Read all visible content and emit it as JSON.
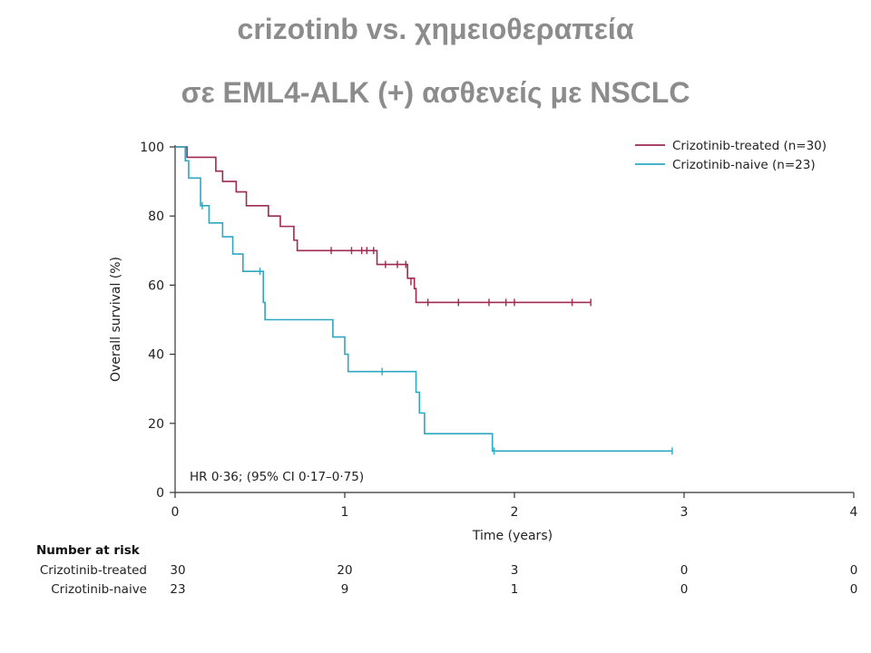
{
  "title": {
    "line1": "crizotinb vs. χημειοθεραπεία",
    "line2": "σε EML4-ALK (+) ασθενείς με NSCLC"
  },
  "chart_data": {
    "type": "line",
    "subtype": "kaplan-meier step curve",
    "xlabel": "Time (years)",
    "ylabel": "Overall survival (%)",
    "xlim": [
      0,
      4
    ],
    "ylim": [
      0,
      100
    ],
    "x_ticks": [
      0,
      1,
      2,
      3,
      4
    ],
    "y_ticks": [
      0,
      20,
      40,
      60,
      80,
      100
    ],
    "grid": false,
    "legend_position": "top-right",
    "annotation": "HR 0·36; (95% CI 0·17–0·75)",
    "colors": {
      "treated": "#9e2a4f",
      "naive": "#2ea7c2"
    },
    "series": [
      {
        "name": "Crizotinib-treated (n=30)",
        "color": "#9e2a4f",
        "steps": [
          [
            0,
            100
          ],
          [
            0.07,
            97
          ],
          [
            0.24,
            93
          ],
          [
            0.28,
            90
          ],
          [
            0.36,
            87
          ],
          [
            0.42,
            83
          ],
          [
            0.55,
            80
          ],
          [
            0.62,
            77
          ],
          [
            0.7,
            73
          ],
          [
            0.72,
            70
          ],
          [
            1.19,
            66
          ],
          [
            1.37,
            62
          ],
          [
            1.41,
            59
          ],
          [
            1.42,
            55
          ],
          [
            2.45,
            55
          ]
        ],
        "censored": [
          [
            0.92,
            70
          ],
          [
            1.04,
            70
          ],
          [
            1.1,
            70
          ],
          [
            1.13,
            70
          ],
          [
            1.17,
            70
          ],
          [
            1.24,
            66
          ],
          [
            1.31,
            66
          ],
          [
            1.36,
            66
          ],
          [
            1.39,
            61
          ],
          [
            1.41,
            60
          ],
          [
            1.49,
            55
          ],
          [
            1.67,
            55
          ],
          [
            1.85,
            55
          ],
          [
            1.95,
            55
          ],
          [
            2.0,
            55
          ],
          [
            2.34,
            55
          ],
          [
            2.45,
            55
          ]
        ]
      },
      {
        "name": "Crizotinib-naive (n=23)",
        "color": "#2ea7c2",
        "steps": [
          [
            0,
            100
          ],
          [
            0.06,
            96
          ],
          [
            0.08,
            91
          ],
          [
            0.15,
            83
          ],
          [
            0.2,
            78
          ],
          [
            0.28,
            74
          ],
          [
            0.34,
            69
          ],
          [
            0.4,
            64
          ],
          [
            0.52,
            55
          ],
          [
            0.53,
            50
          ],
          [
            0.93,
            45
          ],
          [
            1.0,
            40
          ],
          [
            1.02,
            35
          ],
          [
            1.42,
            29
          ],
          [
            1.44,
            23
          ],
          [
            1.47,
            17
          ],
          [
            1.87,
            12
          ],
          [
            2.93,
            12
          ]
        ],
        "censored": [
          [
            0.16,
            83
          ],
          [
            0.5,
            64
          ],
          [
            1.22,
            35
          ],
          [
            1.88,
            12
          ],
          [
            2.93,
            12
          ]
        ]
      }
    ],
    "risk_table": {
      "header": "Number at risk",
      "times": [
        0,
        1,
        2,
        3,
        4
      ],
      "rows": [
        {
          "label": "Crizotinib-treated",
          "values": [
            "30",
            "20",
            "3",
            "0",
            "0"
          ]
        },
        {
          "label": "Crizotinib-naive",
          "values": [
            "23",
            "9",
            "1",
            "0",
            "0"
          ]
        }
      ]
    }
  }
}
